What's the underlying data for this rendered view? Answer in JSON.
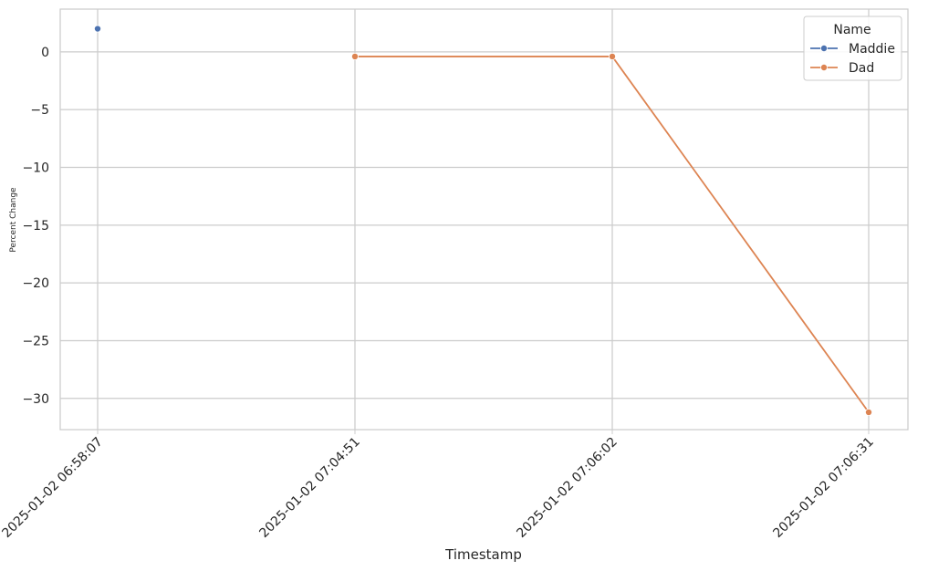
{
  "chart_data": {
    "type": "line",
    "xlabel": "Timestamp",
    "ylabel": "Percent Change",
    "x_categories": [
      "2025-01-02 06:58:07",
      "2025-01-02 07:04:51",
      "2025-01-02 07:06:02",
      "2025-01-02 07:06:31"
    ],
    "yticks": [
      0,
      -5,
      -10,
      -15,
      -20,
      -25,
      -30
    ],
    "ylim": [
      -32.7,
      3.7
    ],
    "grid": true,
    "legend": {
      "title": "Name",
      "placement": "top-right"
    },
    "series": [
      {
        "name": "Maddie",
        "color": "#4c72b0",
        "points": [
          {
            "x": "2025-01-02 06:58:07",
            "y": 2.0
          }
        ]
      },
      {
        "name": "Dad",
        "color": "#dd8452",
        "points": [
          {
            "x": "2025-01-02 07:04:51",
            "y": -0.4
          },
          {
            "x": "2025-01-02 07:06:02",
            "y": -0.4
          },
          {
            "x": "2025-01-02 07:06:31",
            "y": -31.2
          }
        ]
      }
    ]
  }
}
